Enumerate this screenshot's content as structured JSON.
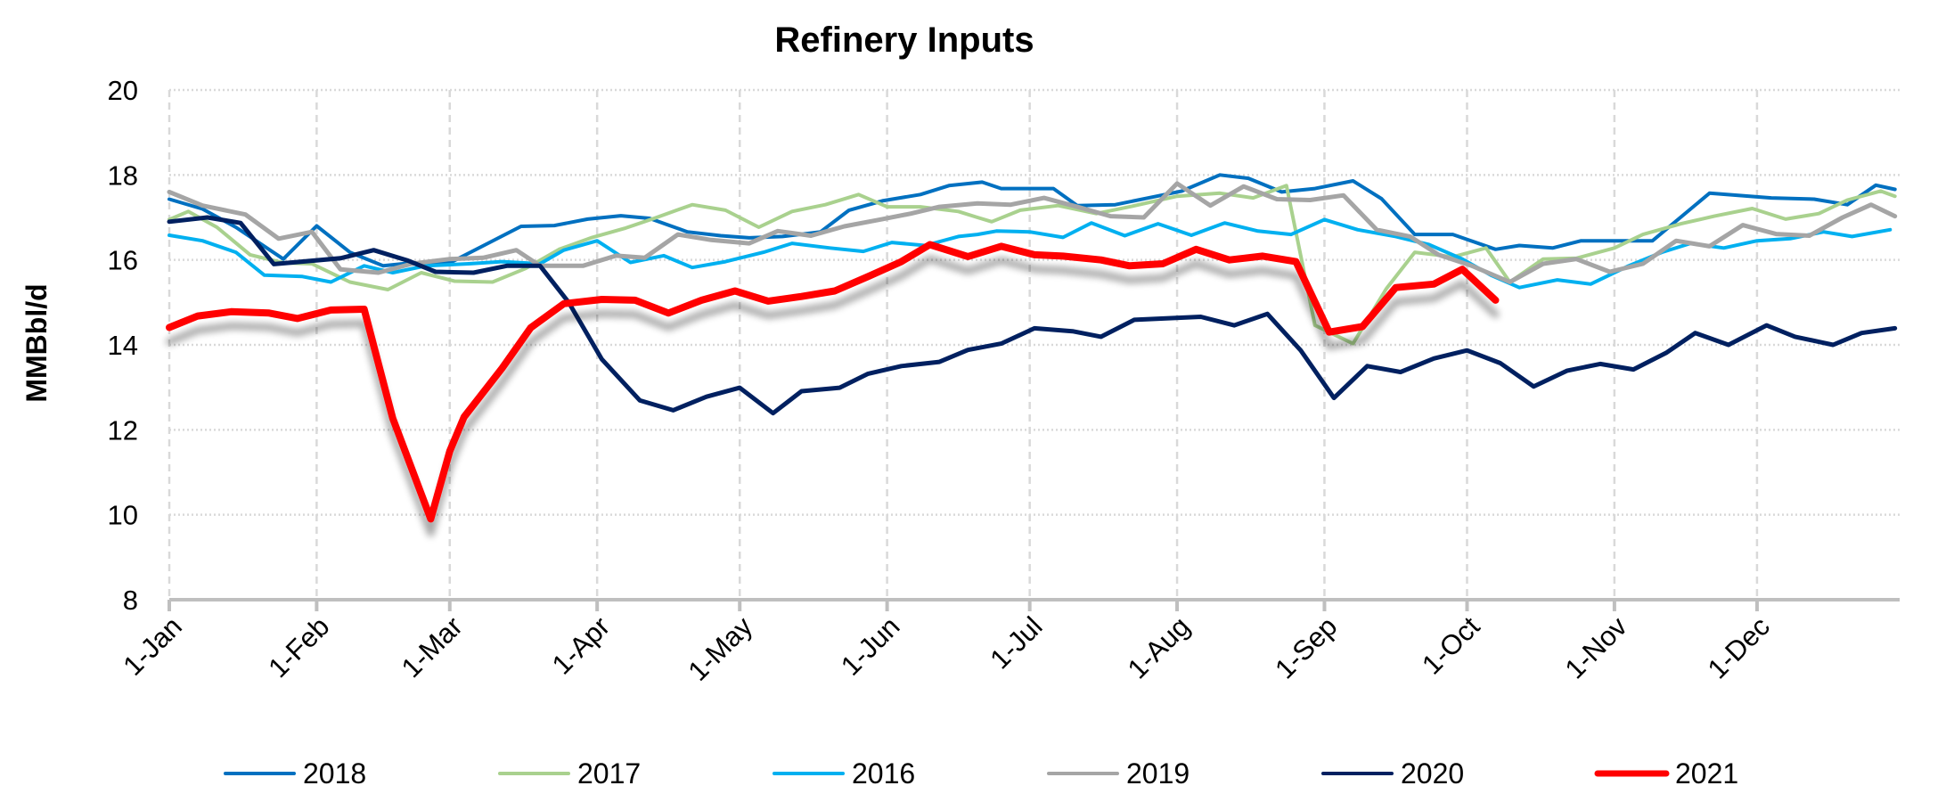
{
  "chart_data": {
    "type": "line",
    "title": "Refinery Inputs",
    "xlabel": "",
    "ylabel": "MMBbl/d",
    "ylim": [
      8,
      20
    ],
    "yticks": [
      8,
      10,
      12,
      14,
      16,
      18,
      20
    ],
    "xlim_day_of_year": [
      0,
      364
    ],
    "xticks": [
      {
        "label": "1-Jan",
        "day": 0
      },
      {
        "label": "1-Feb",
        "day": 31
      },
      {
        "label": "1-Mar",
        "day": 59
      },
      {
        "label": "1-Apr",
        "day": 90
      },
      {
        "label": "1-May",
        "day": 120
      },
      {
        "label": "1-Jun",
        "day": 151
      },
      {
        "label": "1-Jul",
        "day": 181
      },
      {
        "label": "1-Aug",
        "day": 212
      },
      {
        "label": "1-Sep",
        "day": 243
      },
      {
        "label": "1-Oct",
        "day": 273
      },
      {
        "label": "1-Nov",
        "day": 304
      },
      {
        "label": "1-Dec",
        "day": 334
      }
    ],
    "grid": true,
    "legend_position": "bottom",
    "series": [
      {
        "name": "2018",
        "color": "#0070C0",
        "width": 4,
        "points": [
          [
            0,
            17.43
          ],
          [
            7,
            17.2
          ],
          [
            14,
            16.77
          ],
          [
            24,
            16.02
          ],
          [
            31,
            16.8
          ],
          [
            38,
            16.18
          ],
          [
            45,
            15.86
          ],
          [
            51,
            15.93
          ],
          [
            59,
            15.93
          ],
          [
            67,
            16.39
          ],
          [
            74,
            16.79
          ],
          [
            81,
            16.81
          ],
          [
            88,
            16.96
          ],
          [
            95,
            17.04
          ],
          [
            101,
            16.98
          ],
          [
            109,
            16.66
          ],
          [
            116,
            16.57
          ],
          [
            122,
            16.52
          ],
          [
            129,
            16.55
          ],
          [
            137,
            16.66
          ],
          [
            143,
            17.17
          ],
          [
            150,
            17.39
          ],
          [
            158,
            17.54
          ],
          [
            164,
            17.75
          ],
          [
            171,
            17.83
          ],
          [
            175,
            17.68
          ],
          [
            186,
            17.68
          ],
          [
            191,
            17.28
          ],
          [
            199,
            17.3
          ],
          [
            206,
            17.46
          ],
          [
            213,
            17.62
          ],
          [
            221,
            18.0
          ],
          [
            227,
            17.92
          ],
          [
            234,
            17.6
          ],
          [
            241,
            17.68
          ],
          [
            249,
            17.86
          ],
          [
            255,
            17.44
          ],
          [
            262,
            16.6
          ],
          [
            270,
            16.6
          ],
          [
            279,
            16.25
          ],
          [
            284,
            16.34
          ],
          [
            291,
            16.28
          ],
          [
            297,
            16.45
          ],
          [
            312,
            16.45
          ],
          [
            324,
            17.57
          ],
          [
            337,
            17.46
          ],
          [
            346,
            17.43
          ],
          [
            353,
            17.3
          ],
          [
            359,
            17.76
          ],
          [
            363,
            17.66
          ]
        ]
      },
      {
        "name": "2017",
        "color": "#A9D18E",
        "width": 4,
        "points": [
          [
            0,
            16.95
          ],
          [
            4,
            17.14
          ],
          [
            10,
            16.77
          ],
          [
            17,
            16.12
          ],
          [
            24,
            15.93
          ],
          [
            30,
            15.91
          ],
          [
            38,
            15.48
          ],
          [
            46,
            15.3
          ],
          [
            53,
            15.7
          ],
          [
            60,
            15.5
          ],
          [
            68,
            15.48
          ],
          [
            75,
            15.8
          ],
          [
            82,
            16.25
          ],
          [
            89,
            16.53
          ],
          [
            96,
            16.75
          ],
          [
            102,
            16.98
          ],
          [
            110,
            17.3
          ],
          [
            117,
            17.17
          ],
          [
            124,
            16.77
          ],
          [
            131,
            17.14
          ],
          [
            138,
            17.3
          ],
          [
            145,
            17.54
          ],
          [
            151,
            17.25
          ],
          [
            158,
            17.25
          ],
          [
            166,
            17.14
          ],
          [
            170,
            17.0
          ],
          [
            173,
            16.9
          ],
          [
            179,
            17.17
          ],
          [
            187,
            17.28
          ],
          [
            195,
            17.09
          ],
          [
            202,
            17.25
          ],
          [
            212,
            17.5
          ],
          [
            221,
            17.57
          ],
          [
            228,
            17.46
          ],
          [
            235,
            17.75
          ],
          [
            241,
            14.46
          ],
          [
            249,
            14.03
          ],
          [
            256,
            15.32
          ],
          [
            262,
            16.18
          ],
          [
            270,
            16.07
          ],
          [
            277,
            16.28
          ],
          [
            282,
            15.48
          ],
          [
            289,
            16.02
          ],
          [
            296,
            16.04
          ],
          [
            304,
            16.28
          ],
          [
            310,
            16.6
          ],
          [
            318,
            16.85
          ],
          [
            325,
            17.03
          ],
          [
            333,
            17.21
          ],
          [
            340,
            16.96
          ],
          [
            347,
            17.09
          ],
          [
            353,
            17.41
          ],
          [
            360,
            17.62
          ],
          [
            363,
            17.5
          ]
        ]
      },
      {
        "name": "2016",
        "color": "#00B0F0",
        "width": 4,
        "points": [
          [
            0,
            16.58
          ],
          [
            7,
            16.45
          ],
          [
            14,
            16.18
          ],
          [
            20,
            15.64
          ],
          [
            28,
            15.61
          ],
          [
            34,
            15.48
          ],
          [
            41,
            15.86
          ],
          [
            47,
            15.7
          ],
          [
            54,
            15.86
          ],
          [
            63,
            15.91
          ],
          [
            70,
            15.96
          ],
          [
            78,
            15.91
          ],
          [
            83,
            16.23
          ],
          [
            90,
            16.45
          ],
          [
            97,
            15.94
          ],
          [
            104,
            16.1
          ],
          [
            110,
            15.82
          ],
          [
            117,
            15.96
          ],
          [
            125,
            16.18
          ],
          [
            131,
            16.39
          ],
          [
            139,
            16.28
          ],
          [
            146,
            16.2
          ],
          [
            152,
            16.41
          ],
          [
            159,
            16.34
          ],
          [
            166,
            16.55
          ],
          [
            170,
            16.6
          ],
          [
            174,
            16.68
          ],
          [
            181,
            16.66
          ],
          [
            188,
            16.53
          ],
          [
            194,
            16.87
          ],
          [
            201,
            16.57
          ],
          [
            208,
            16.85
          ],
          [
            215,
            16.58
          ],
          [
            222,
            16.87
          ],
          [
            229,
            16.68
          ],
          [
            236,
            16.6
          ],
          [
            243,
            16.95
          ],
          [
            250,
            16.71
          ],
          [
            258,
            16.55
          ],
          [
            265,
            16.36
          ],
          [
            272,
            16.02
          ],
          [
            278,
            15.64
          ],
          [
            284,
            15.35
          ],
          [
            292,
            15.53
          ],
          [
            299,
            15.43
          ],
          [
            307,
            15.86
          ],
          [
            314,
            16.18
          ],
          [
            320,
            16.39
          ],
          [
            327,
            16.28
          ],
          [
            334,
            16.45
          ],
          [
            341,
            16.5
          ],
          [
            348,
            16.66
          ],
          [
            354,
            16.55
          ],
          [
            362,
            16.71
          ]
        ]
      },
      {
        "name": "2019",
        "color": "#A5A5A5",
        "width": 5,
        "points": [
          [
            0,
            17.6
          ],
          [
            7,
            17.28
          ],
          [
            16,
            17.07
          ],
          [
            23,
            16.5
          ],
          [
            30,
            16.66
          ],
          [
            36,
            15.78
          ],
          [
            44,
            15.7
          ],
          [
            51,
            15.91
          ],
          [
            59,
            16.02
          ],
          [
            66,
            16.05
          ],
          [
            73,
            16.23
          ],
          [
            78,
            15.86
          ],
          [
            87,
            15.86
          ],
          [
            94,
            16.1
          ],
          [
            100,
            16.05
          ],
          [
            107,
            16.6
          ],
          [
            114,
            16.47
          ],
          [
            122,
            16.39
          ],
          [
            128,
            16.68
          ],
          [
            135,
            16.57
          ],
          [
            142,
            16.79
          ],
          [
            150,
            16.96
          ],
          [
            156,
            17.09
          ],
          [
            162,
            17.25
          ],
          [
            170,
            17.33
          ],
          [
            177,
            17.3
          ],
          [
            184,
            17.46
          ],
          [
            191,
            17.25
          ],
          [
            198,
            17.03
          ],
          [
            205,
            17.0
          ],
          [
            212,
            17.8
          ],
          [
            219,
            17.28
          ],
          [
            226,
            17.73
          ],
          [
            233,
            17.43
          ],
          [
            240,
            17.41
          ],
          [
            247,
            17.52
          ],
          [
            254,
            16.71
          ],
          [
            261,
            16.55
          ],
          [
            267,
            16.12
          ],
          [
            274,
            15.86
          ],
          [
            282,
            15.48
          ],
          [
            289,
            15.91
          ],
          [
            296,
            16.02
          ],
          [
            303,
            15.72
          ],
          [
            310,
            15.91
          ],
          [
            317,
            16.45
          ],
          [
            324,
            16.32
          ],
          [
            331,
            16.82
          ],
          [
            338,
            16.61
          ],
          [
            345,
            16.57
          ],
          [
            352,
            17.0
          ],
          [
            358,
            17.3
          ],
          [
            363,
            17.03
          ]
        ]
      },
      {
        "name": "2020",
        "color": "#002060",
        "width": 5,
        "points": [
          [
            0,
            16.9
          ],
          [
            8,
            17.0
          ],
          [
            15,
            16.87
          ],
          [
            22,
            15.9
          ],
          [
            36,
            16.04
          ],
          [
            43,
            16.23
          ],
          [
            50,
            15.99
          ],
          [
            56,
            15.72
          ],
          [
            64,
            15.7
          ],
          [
            71,
            15.86
          ],
          [
            78,
            15.86
          ],
          [
            84,
            15.0
          ],
          [
            91,
            13.66
          ],
          [
            99,
            12.69
          ],
          [
            106,
            12.46
          ],
          [
            113,
            12.78
          ],
          [
            120,
            12.99
          ],
          [
            127,
            12.39
          ],
          [
            133,
            12.91
          ],
          [
            141,
            12.99
          ],
          [
            147,
            13.32
          ],
          [
            154,
            13.5
          ],
          [
            162,
            13.6
          ],
          [
            168,
            13.88
          ],
          [
            175,
            14.03
          ],
          [
            182,
            14.39
          ],
          [
            190,
            14.32
          ],
          [
            196,
            14.19
          ],
          [
            203,
            14.59
          ],
          [
            217,
            14.66
          ],
          [
            224,
            14.46
          ],
          [
            231,
            14.73
          ],
          [
            238,
            13.87
          ],
          [
            245,
            12.75
          ],
          [
            252,
            13.5
          ],
          [
            259,
            13.36
          ],
          [
            266,
            13.68
          ],
          [
            273,
            13.87
          ],
          [
            280,
            13.57
          ],
          [
            287,
            13.02
          ],
          [
            294,
            13.39
          ],
          [
            301,
            13.55
          ],
          [
            308,
            13.42
          ],
          [
            315,
            13.82
          ],
          [
            321,
            14.28
          ],
          [
            328,
            14.0
          ],
          [
            336,
            14.46
          ],
          [
            342,
            14.19
          ],
          [
            350,
            14.0
          ],
          [
            356,
            14.28
          ],
          [
            363,
            14.39
          ]
        ]
      },
      {
        "name": "2021",
        "color": "#FF0000",
        "width": 8,
        "points": [
          [
            0,
            14.41
          ],
          [
            6,
            14.68
          ],
          [
            13,
            14.78
          ],
          [
            21,
            14.75
          ],
          [
            27,
            14.62
          ],
          [
            34,
            14.82
          ],
          [
            41,
            14.84
          ],
          [
            47,
            12.27
          ],
          [
            55,
            9.9
          ],
          [
            59,
            11.5
          ],
          [
            62,
            12.3
          ],
          [
            70,
            13.45
          ],
          [
            76,
            14.4
          ],
          [
            83,
            14.97
          ],
          [
            91,
            15.07
          ],
          [
            98,
            15.05
          ],
          [
            105,
            14.75
          ],
          [
            112,
            15.05
          ],
          [
            119,
            15.27
          ],
          [
            126,
            15.03
          ],
          [
            133,
            15.14
          ],
          [
            140,
            15.27
          ],
          [
            147,
            15.61
          ],
          [
            154,
            15.96
          ],
          [
            160,
            16.36
          ],
          [
            168,
            16.08
          ],
          [
            175,
            16.32
          ],
          [
            182,
            16.12
          ],
          [
            188,
            16.09
          ],
          [
            196,
            16.0
          ],
          [
            202,
            15.86
          ],
          [
            209,
            15.91
          ],
          [
            216,
            16.25
          ],
          [
            223,
            16.0
          ],
          [
            230,
            16.09
          ],
          [
            237,
            15.96
          ],
          [
            244,
            14.3
          ],
          [
            251,
            14.43
          ],
          [
            258,
            15.35
          ],
          [
            266,
            15.43
          ],
          [
            272,
            15.78
          ],
          [
            279,
            15.05
          ]
        ]
      }
    ]
  }
}
